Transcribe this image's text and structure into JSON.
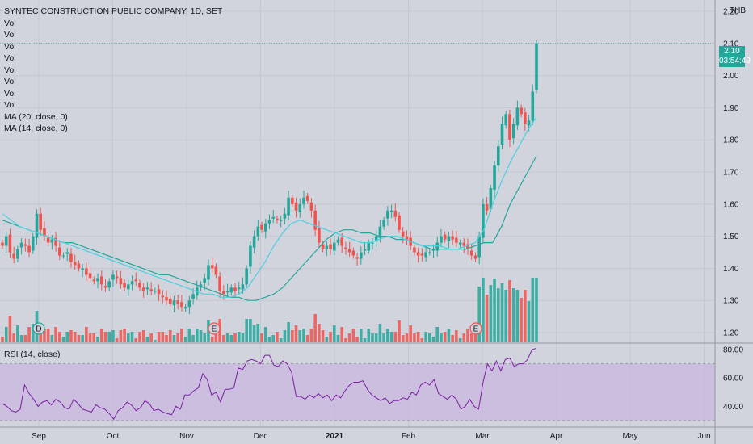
{
  "legend": {
    "title": "SYNTEC CONSTRUCTION PUBLIC COMPANY, 1D, SET",
    "vol_lines": [
      "Vol",
      "Vol",
      "Vol",
      "Vol",
      "Vol",
      "Vol",
      "Vol",
      "Vol"
    ],
    "ma20": "MA (20, close, 0)",
    "ma14": "MA (14, close, 0)"
  },
  "price_axis": {
    "currency": "THB",
    "ticks": [
      "2.20",
      "2.10",
      "2.00",
      "1.90",
      "1.80",
      "1.70",
      "1.60",
      "1.50",
      "1.40",
      "1.30",
      "1.20"
    ]
  },
  "last_price": {
    "value": "2.10",
    "countdown": "03:54:49"
  },
  "rsi": {
    "title": "RSI (14, close)",
    "ticks": [
      "80.00",
      "60.00",
      "40.00"
    ]
  },
  "time_axis": [
    "Sep",
    "Oct",
    "Nov",
    "Dec",
    "2021",
    "Feb",
    "Mar",
    "Apr",
    "May",
    "Jun"
  ],
  "event_markers": [
    "D",
    "E",
    "E"
  ],
  "colors": {
    "up": "#26a69a",
    "down": "#ef5350",
    "ma20": "#26a69a",
    "ma14": "#4dd0e1",
    "rsi": "#7b1fa2",
    "rsi_band": "#c9b8e0",
    "background": "#d1d4dc"
  },
  "chart_data": {
    "type": "candlestick",
    "x_range": [
      "Aug",
      "Jun"
    ],
    "ylim": [
      1.17,
      2.22
    ],
    "rsi_ylim": [
      26,
      84
    ],
    "closes": [
      1.47,
      1.5,
      1.45,
      1.43,
      1.46,
      1.48,
      1.47,
      1.45,
      1.5,
      1.57,
      1.52,
      1.5,
      1.48,
      1.49,
      1.47,
      1.44,
      1.44,
      1.45,
      1.42,
      1.41,
      1.4,
      1.4,
      1.38,
      1.37,
      1.36,
      1.37,
      1.35,
      1.34,
      1.36,
      1.38,
      1.37,
      1.35,
      1.34,
      1.35,
      1.36,
      1.36,
      1.34,
      1.33,
      1.34,
      1.33,
      1.33,
      1.32,
      1.31,
      1.3,
      1.29,
      1.3,
      1.29,
      1.28,
      1.28,
      1.3,
      1.32,
      1.34,
      1.35,
      1.37,
      1.41,
      1.4,
      1.38,
      1.33,
      1.32,
      1.33,
      1.34,
      1.33,
      1.34,
      1.35,
      1.4,
      1.47,
      1.5,
      1.53,
      1.52,
      1.54,
      1.55,
      1.56,
      1.55,
      1.55,
      1.57,
      1.62,
      1.6,
      1.58,
      1.6,
      1.62,
      1.61,
      1.58,
      1.52,
      1.48,
      1.46,
      1.47,
      1.46,
      1.48,
      1.49,
      1.47,
      1.46,
      1.45,
      1.44,
      1.43,
      1.45,
      1.46,
      1.48,
      1.48,
      1.5,
      1.53,
      1.55,
      1.58,
      1.58,
      1.56,
      1.52,
      1.5,
      1.49,
      1.47,
      1.45,
      1.44,
      1.44,
      1.45,
      1.45,
      1.46,
      1.48,
      1.5,
      1.49,
      1.5,
      1.49,
      1.48,
      1.48,
      1.47,
      1.46,
      1.44,
      1.43,
      1.5,
      1.6,
      1.58,
      1.65,
      1.72,
      1.78,
      1.85,
      1.88,
      1.8,
      1.85,
      1.9,
      1.88,
      1.85,
      1.86,
      1.95,
      2.1
    ],
    "ma20": [
      1.55,
      1.54,
      1.53,
      1.52,
      1.51,
      1.5,
      1.49,
      1.48,
      1.48,
      1.47,
      1.46,
      1.45,
      1.44,
      1.43,
      1.42,
      1.41,
      1.4,
      1.39,
      1.38,
      1.38,
      1.37,
      1.36,
      1.35,
      1.34,
      1.33,
      1.32,
      1.31,
      1.31,
      1.3,
      1.3,
      1.31,
      1.32,
      1.34,
      1.37,
      1.4,
      1.43,
      1.46,
      1.49,
      1.51,
      1.52,
      1.52,
      1.51,
      1.51,
      1.5,
      1.5,
      1.49,
      1.49,
      1.48,
      1.47,
      1.46,
      1.46,
      1.46,
      1.46,
      1.46,
      1.47,
      1.48,
      1.48,
      1.53,
      1.6,
      1.65,
      1.7,
      1.75
    ],
    "ma14": [
      1.57,
      1.55,
      1.53,
      1.52,
      1.51,
      1.5,
      1.49,
      1.48,
      1.47,
      1.46,
      1.45,
      1.44,
      1.43,
      1.42,
      1.41,
      1.4,
      1.39,
      1.38,
      1.37,
      1.36,
      1.35,
      1.34,
      1.33,
      1.32,
      1.32,
      1.31,
      1.31,
      1.32,
      1.34,
      1.38,
      1.42,
      1.47,
      1.51,
      1.54,
      1.55,
      1.54,
      1.53,
      1.52,
      1.51,
      1.5,
      1.49,
      1.48,
      1.48,
      1.49,
      1.5,
      1.5,
      1.49,
      1.48,
      1.47,
      1.47,
      1.47,
      1.46,
      1.46,
      1.47,
      1.48,
      1.52,
      1.6,
      1.67,
      1.73,
      1.78,
      1.83,
      1.87
    ],
    "rsi": [
      42,
      40,
      37,
      36,
      38,
      55,
      49,
      45,
      40,
      43,
      44,
      41,
      45,
      43,
      39,
      38,
      45,
      42,
      38,
      37,
      36,
      41,
      39,
      38,
      35,
      31,
      37,
      39,
      43,
      41,
      37,
      39,
      44,
      42,
      37,
      38,
      36,
      35,
      34,
      40,
      38,
      48,
      48,
      51,
      53,
      63,
      59,
      48,
      50,
      43,
      52,
      52,
      53,
      67,
      66,
      72,
      73,
      72,
      70,
      76,
      76,
      69,
      68,
      72,
      70,
      64,
      47,
      47,
      45,
      48,
      46,
      49,
      46,
      48,
      44,
      48,
      46,
      51,
      55,
      57,
      57,
      58,
      52,
      48,
      46,
      44,
      46,
      42,
      44,
      44,
      46,
      45,
      50,
      48,
      55,
      57,
      55,
      59,
      49,
      47,
      45,
      48,
      45,
      38,
      40,
      45,
      40,
      38,
      57,
      70,
      65,
      72,
      65,
      73,
      74,
      68,
      70,
      70,
      73,
      80,
      81
    ]
  }
}
